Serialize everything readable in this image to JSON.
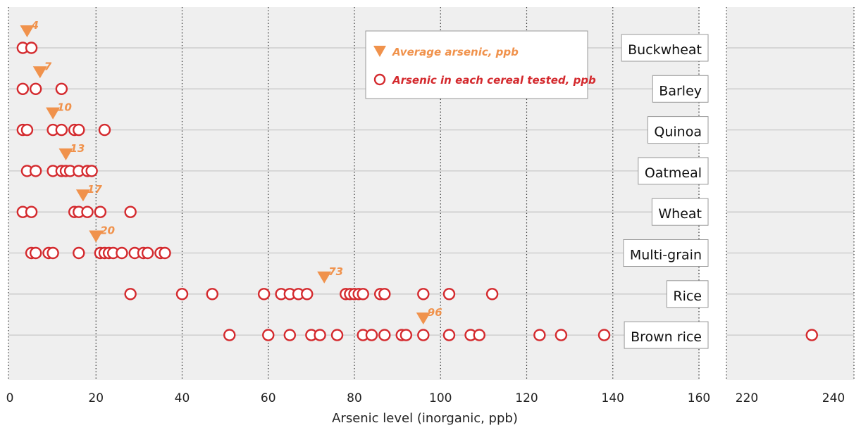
{
  "chart_data": {
    "type": "scatter",
    "xlabel": "Arsenic level (inorganic, ppb)",
    "x_ticks_left": [
      0,
      20,
      40,
      60,
      80,
      100,
      120,
      140,
      160
    ],
    "x_ticks_right": [
      220,
      240
    ],
    "xlim_left": [
      0,
      160
    ],
    "xlim_right": [
      215,
      240
    ],
    "grid": true,
    "legend_position": "top-center",
    "legend": {
      "average": "Average arsenic, ppb",
      "each": "Arsenic in each cereal tested, ppb"
    },
    "colors": {
      "panel_bg": "#efefef",
      "average_marker": "#f0924c",
      "point_stroke": "#d42a2e",
      "row_line": "#c8c8c8"
    },
    "categories": [
      {
        "name": "Buckwheat",
        "average": 4,
        "values": [
          3,
          5
        ]
      },
      {
        "name": "Barley",
        "average": 7,
        "values": [
          3,
          6,
          12
        ]
      },
      {
        "name": "Quinoa",
        "average": 10,
        "values": [
          3,
          4,
          10,
          12,
          15,
          16,
          22
        ]
      },
      {
        "name": "Oatmeal",
        "average": 13,
        "values": [
          4,
          6,
          10,
          12,
          13,
          14,
          16,
          18,
          19
        ]
      },
      {
        "name": "Wheat",
        "average": 17,
        "values": [
          3,
          5,
          15,
          16,
          18,
          21,
          28
        ]
      },
      {
        "name": "Multi-grain",
        "average": 20,
        "values": [
          5,
          6,
          9,
          10,
          16,
          21,
          22,
          23,
          24,
          26,
          29,
          31,
          32,
          35,
          36
        ]
      },
      {
        "name": "Rice",
        "average": 73,
        "values": [
          28,
          40,
          47,
          59,
          63,
          65,
          67,
          69,
          78,
          79,
          80,
          81,
          82,
          86,
          87,
          96,
          102,
          112
        ]
      },
      {
        "name": "Brown rice",
        "average": 96,
        "values": [
          51,
          60,
          65,
          70,
          72,
          76,
          82,
          84,
          87,
          91,
          92,
          96,
          102,
          107,
          109,
          123,
          128,
          138,
          235
        ]
      }
    ]
  }
}
